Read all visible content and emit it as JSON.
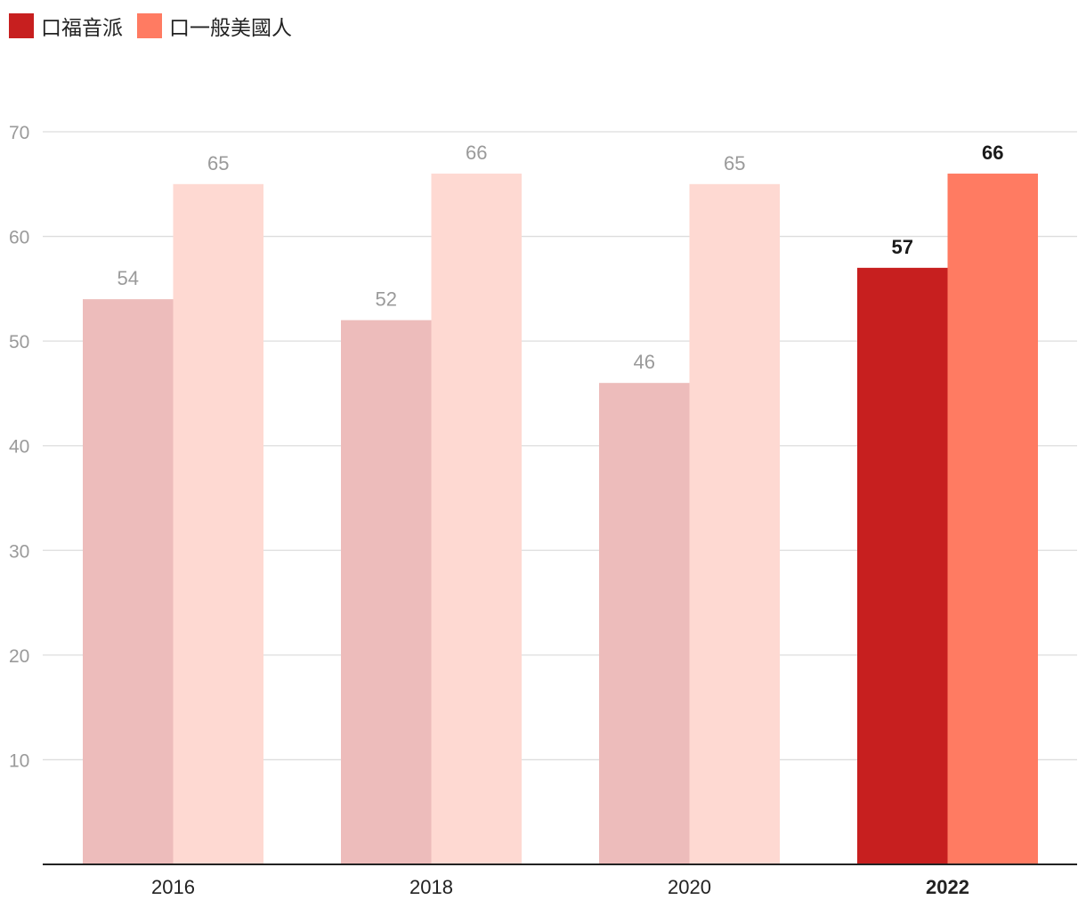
{
  "legend": [
    {
      "label": "口福音派",
      "color": "#c71f1f"
    },
    {
      "label": "口一般美國人",
      "color": "#ff7b62"
    }
  ],
  "chart_data": {
    "type": "bar",
    "categories": [
      "2016",
      "2018",
      "2020",
      "2022"
    ],
    "highlight_category": "2022",
    "series": [
      {
        "name": "口福音派",
        "values": [
          54,
          52,
          46,
          57
        ],
        "color": "#c71f1f",
        "faded_color": "#edbcbb"
      },
      {
        "name": "口一般美國人",
        "values": [
          65,
          66,
          65,
          66
        ],
        "color": "#ff7b62",
        "faded_color": "#fed9d2"
      }
    ],
    "y_ticks": [
      10,
      20,
      30,
      40,
      50,
      60,
      70
    ],
    "ylim": [
      0,
      70
    ],
    "grid": true,
    "legend_position": "top-left",
    "title": "",
    "xlabel": "",
    "ylabel": ""
  }
}
